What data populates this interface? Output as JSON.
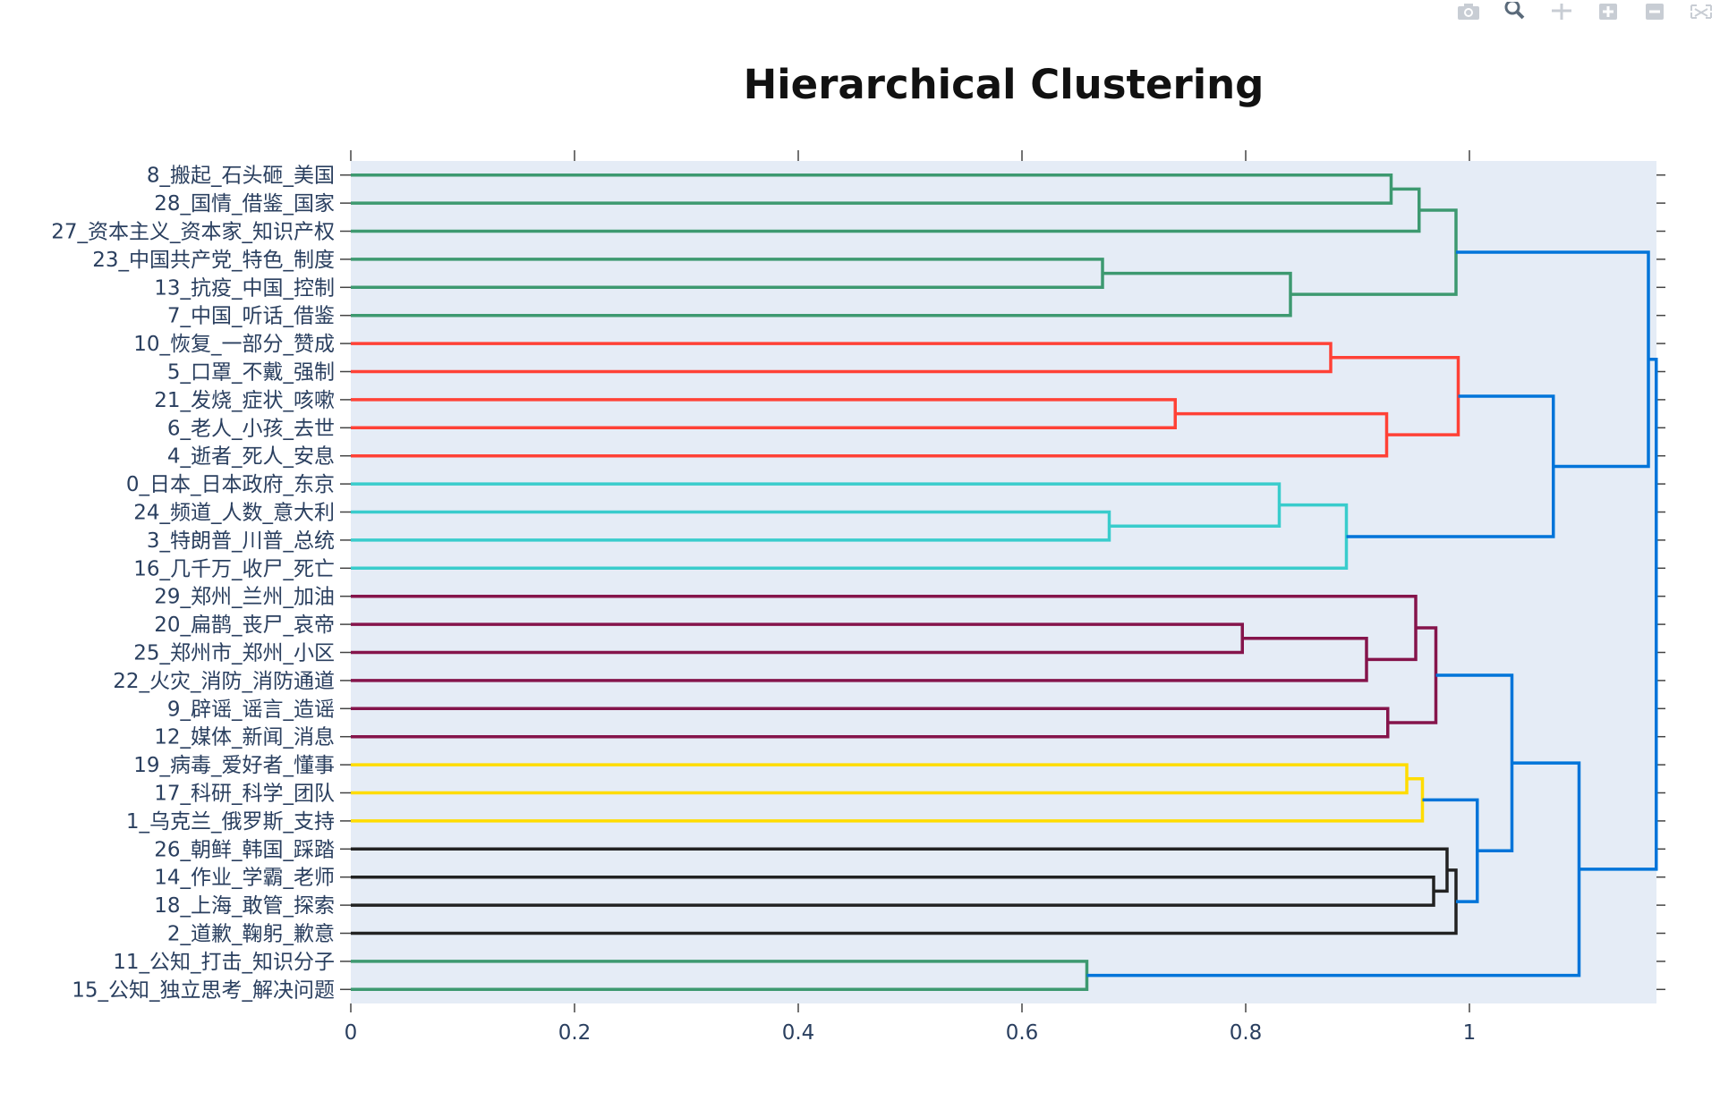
{
  "modebar": {
    "buttons": [
      {
        "name": "camera-icon"
      },
      {
        "name": "zoom-icon"
      },
      {
        "name": "pan-icon"
      },
      {
        "name": "zoom-in-icon"
      },
      {
        "name": "zoom-out-icon"
      },
      {
        "name": "autoscale-icon"
      }
    ]
  },
  "chart_data": {
    "type": "dendrogram",
    "title": "Hierarchical Clustering",
    "orientation": "horizontal",
    "xlim": [
      0,
      1.17
    ],
    "xticks": [
      0,
      0.2,
      0.4,
      0.6,
      0.8,
      1
    ],
    "xtick_labels": [
      "0",
      "0.2",
      "0.4",
      "0.6",
      "0.8",
      "1"
    ],
    "grid": false,
    "plot_bg": "#e5ecf6",
    "leaves": [
      "8_搬起_石头砸_美国",
      "28_国情_借鉴_国家",
      "27_资本主义_资本家_知识产权",
      "23_中国共产党_特色_制度",
      "13_抗疫_中国_控制",
      "7_中国_听话_借鉴",
      "10_恢复_一部分_赞成",
      "5_口罩_不戴_强制",
      "21_发烧_症状_咳嗽",
      "6_老人_小孩_去世",
      "4_逝者_死人_安息",
      "0_日本_日本政府_东京",
      "24_频道_人数_意大利",
      "3_特朗普_川普_总统",
      "16_几千万_收尸_死亡",
      "29_郑州_兰州_加油",
      "20_扁鹊_丧尸_哀帝",
      "25_郑州市_郑州_小区",
      "22_火灾_消防_消防通道",
      "9_辟谣_谣言_造谣",
      "12_媒体_新闻_消息",
      "19_病毒_爱好者_懂事",
      "17_科研_科学_团队",
      "1_乌克兰_俄罗斯_支持",
      "26_朝鲜_韩国_踩踏",
      "14_作业_学霸_老师",
      "18_上海_敢管_探索",
      "2_道歉_鞠躬_歉意",
      "11_公知_打击_知识分子",
      "15_公知_独立思考_解决问题"
    ],
    "colors": {
      "green": "#3d9970",
      "red": "#ff4136",
      "cyan": "#39cccc",
      "purple": "#85144b",
      "yellow": "#ffdc00",
      "black": "#222222",
      "blue": "#0074d9"
    },
    "links": [
      {
        "id": "A",
        "left": 0,
        "right": 1,
        "height": 0.93,
        "color": "green"
      },
      {
        "id": "B",
        "left": "A",
        "right": 2,
        "height": 0.955,
        "color": "green"
      },
      {
        "id": "C",
        "left": 3,
        "right": 4,
        "height": 0.672,
        "color": "green"
      },
      {
        "id": "D",
        "left": "C",
        "right": 5,
        "height": 0.84,
        "color": "green"
      },
      {
        "id": "E",
        "left": "B",
        "right": "D",
        "height": 0.988,
        "color": "green"
      },
      {
        "id": "F",
        "left": 6,
        "right": 7,
        "height": 0.876,
        "color": "red"
      },
      {
        "id": "G",
        "left": 8,
        "right": 9,
        "height": 0.737,
        "color": "red"
      },
      {
        "id": "H",
        "left": "G",
        "right": 10,
        "height": 0.926,
        "color": "red"
      },
      {
        "id": "I",
        "left": "F",
        "right": "H",
        "height": 0.99,
        "color": "red"
      },
      {
        "id": "J",
        "left": 12,
        "right": 13,
        "height": 0.678,
        "color": "cyan"
      },
      {
        "id": "K",
        "left": 11,
        "right": "J",
        "height": 0.83,
        "color": "cyan"
      },
      {
        "id": "L",
        "left": "K",
        "right": 14,
        "height": 0.89,
        "color": "cyan"
      },
      {
        "id": "M",
        "left": "I",
        "right": "L",
        "height": 1.075,
        "color": "blue"
      },
      {
        "id": "N",
        "left": "E",
        "right": "M",
        "height": 1.16,
        "color": "blue"
      },
      {
        "id": "O",
        "left": 16,
        "right": 17,
        "height": 0.797,
        "color": "purple"
      },
      {
        "id": "P",
        "left": "O",
        "right": 18,
        "height": 0.908,
        "color": "purple"
      },
      {
        "id": "Q",
        "left": 15,
        "right": "P",
        "height": 0.952,
        "color": "purple"
      },
      {
        "id": "R",
        "left": 19,
        "right": 20,
        "height": 0.927,
        "color": "purple"
      },
      {
        "id": "S",
        "left": "Q",
        "right": "R",
        "height": 0.97,
        "color": "purple"
      },
      {
        "id": "T",
        "left": 21,
        "right": 22,
        "height": 0.944,
        "color": "yellow"
      },
      {
        "id": "U",
        "left": "T",
        "right": 23,
        "height": 0.958,
        "color": "yellow"
      },
      {
        "id": "V",
        "left": 25,
        "right": 26,
        "height": 0.968,
        "color": "black"
      },
      {
        "id": "W",
        "left": 24,
        "right": "V",
        "height": 0.98,
        "color": "black"
      },
      {
        "id": "X",
        "left": "W",
        "right": 27,
        "height": 0.988,
        "color": "black"
      },
      {
        "id": "Y",
        "left": "U",
        "right": "X",
        "height": 1.007,
        "color": "blue"
      },
      {
        "id": "Z",
        "left": "S",
        "right": "Y",
        "height": 1.038,
        "color": "blue"
      },
      {
        "id": "AA",
        "left": 28,
        "right": 29,
        "height": 0.658,
        "color": "green"
      },
      {
        "id": "AB",
        "left": "Z",
        "right": "AA",
        "height": 1.098,
        "color": "blue"
      },
      {
        "id": "AC",
        "left": "N",
        "right": "AB",
        "height": 1.167,
        "color": "blue"
      }
    ]
  }
}
